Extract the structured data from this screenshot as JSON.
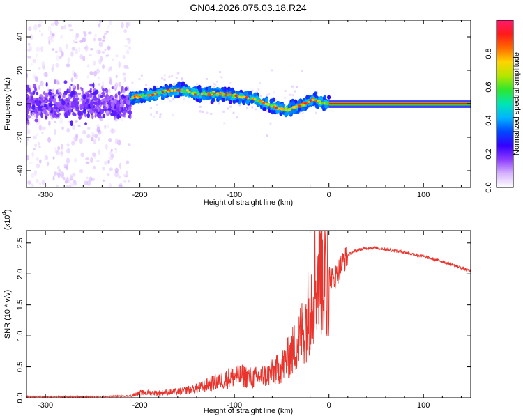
{
  "figure": {
    "title": "GN04.2026.075.03.18.R24"
  },
  "chart_data": [
    {
      "type": "heatmap",
      "name": "spectrogram",
      "xlabel": "Height of straight line (km)",
      "ylabel": "Frequency (Hz)",
      "xlim": [
        -320,
        150
      ],
      "ylim": [
        -50,
        50
      ],
      "x_ticks": [
        -300,
        -200,
        -100,
        0,
        100
      ],
      "x_tick_labels": [
        "-300",
        "-200",
        "-100",
        "0",
        "100"
      ],
      "y_ticks": [
        -40,
        -20,
        0,
        20,
        40
      ],
      "y_tick_labels": [
        "-40",
        "-20",
        "0",
        "20",
        "40"
      ],
      "colorbar": {
        "label": "Normalized spectral amplitude",
        "range": [
          0,
          1
        ],
        "ticks": [
          0.0,
          0.2,
          0.4,
          0.6,
          0.8
        ],
        "tick_labels": [
          "0.0",
          "0.2",
          "0.4",
          "0.6",
          "0.8"
        ],
        "colors": [
          "#ffffff",
          "#d6b3ff",
          "#8d3cff",
          "#3300ff",
          "#0048ff",
          "#00b4ff",
          "#00e6b4",
          "#2ee62e",
          "#b4e600",
          "#ffd400",
          "#ff6a00",
          "#ff1a1a",
          "#ff1a6e"
        ]
      },
      "ridge": {
        "x": [
          -210,
          -200,
          -190,
          -180,
          -170,
          -160,
          -150,
          -140,
          -130,
          -120,
          -110,
          -100,
          -90,
          -80,
          -75,
          -70,
          -60,
          -55,
          -50,
          -45,
          -40,
          -35,
          -30,
          -25,
          -20,
          -15,
          -10,
          -5,
          0
        ],
        "y": [
          4,
          4.5,
          5,
          6.5,
          8,
          8,
          7.5,
          6,
          6,
          6,
          5.5,
          5,
          4,
          3,
          2,
          0.5,
          -1,
          -2.5,
          -3,
          -3.5,
          -3,
          -2,
          -1,
          0,
          1.5,
          3,
          1,
          0,
          0.5
        ]
      },
      "line_segment": {
        "x": [
          0,
          150
        ],
        "y": 0,
        "color": "#ff1a1a"
      }
    },
    {
      "type": "line",
      "name": "snr",
      "xlabel": "Height of straight line (km)",
      "ylabel": "SNR (10 * v/v)",
      "y_multiplier": "(x10",
      "y_multiplier_exp": "4",
      "y_multiplier_close": ")",
      "xlim": [
        -320,
        150
      ],
      "ylim": [
        0,
        2.7
      ],
      "x_ticks": [
        -300,
        -200,
        -100,
        0,
        100
      ],
      "x_tick_labels": [
        "-300",
        "-200",
        "-100",
        "0",
        "100"
      ],
      "y_ticks": [
        0.0,
        0.5,
        1.0,
        1.5,
        2.0,
        2.5
      ],
      "y_tick_labels": [
        "0.0",
        "0.5",
        "1.0",
        "1.5",
        "2.0",
        "2.5"
      ],
      "series": [
        {
          "color": "#e8342c",
          "x": [
            -320,
            -250,
            -210,
            -200,
            -180,
            -160,
            -140,
            -120,
            -110,
            -100,
            -90,
            -80,
            -70,
            -60,
            -50,
            -45,
            -40,
            -35,
            -30,
            -25,
            -20,
            -15,
            -10,
            -5,
            -2,
            0,
            5,
            10,
            15,
            20,
            25,
            30,
            40,
            50,
            60,
            80,
            100,
            120,
            140,
            150
          ],
          "y": [
            0.02,
            0.02,
            0.03,
            0.08,
            0.08,
            0.1,
            0.15,
            0.25,
            0.3,
            0.35,
            0.35,
            0.32,
            0.35,
            0.4,
            0.5,
            0.6,
            0.7,
            0.85,
            1.0,
            1.2,
            1.5,
            1.9,
            2.1,
            2.0,
            1.8,
            2.0,
            1.9,
            2.05,
            2.2,
            2.3,
            2.35,
            2.38,
            2.42,
            2.42,
            2.4,
            2.35,
            2.28,
            2.2,
            2.1,
            2.05
          ]
        }
      ]
    }
  ]
}
